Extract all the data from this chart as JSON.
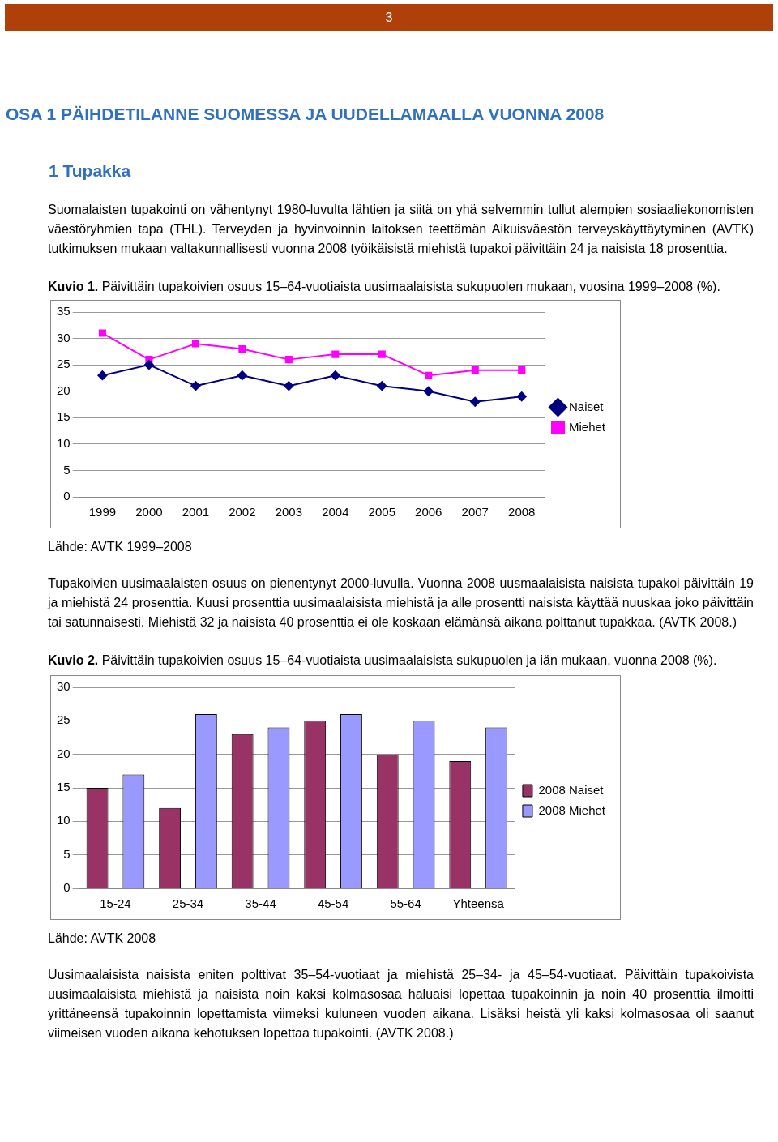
{
  "chart_data": [
    {
      "type": "line",
      "title": "Kuvio 1. Päivittäin tupakoivien osuus 15–64-vuotiaista uusimaalaisista sukupuolen mukaan, vuosina 1999–2008 (%).",
      "categories": [
        "1999",
        "2000",
        "2001",
        "2002",
        "2003",
        "2004",
        "2005",
        "2006",
        "2007",
        "2008"
      ],
      "series": [
        {
          "name": "Naiset",
          "color": "#000080",
          "marker": "diamond",
          "values": [
            23,
            25,
            21,
            23,
            21,
            23,
            21,
            20,
            18,
            19
          ]
        },
        {
          "name": "Miehet",
          "color": "#ff00ff",
          "marker": "square",
          "values": [
            31,
            26,
            29,
            28,
            26,
            27,
            27,
            23,
            24,
            24
          ]
        }
      ],
      "ylim": [
        0,
        35
      ],
      "yticks": [
        0,
        5,
        10,
        15,
        20,
        25,
        30,
        35
      ],
      "grid": "y",
      "legend": "right",
      "annotations": [
        "3",
        "OSA 1 PÄIHDETILANNE SUOMESSA JA UUDELLAMAALLA VUONNA 2008",
        "1 Tupakka",
        "Suomalaisten tupakointi on vähentynyt 1980-luvulta lähtien ja siitä on yhä selvemmin tullut alempien sosiaaliekonomisten väestöryhmien tapa (THL). Terveyden ja hyvinvoinnin laitoksen teettämän Aikuisväestön terveyskäyttäytyminen (AVTK) tutkimuksen mukaan valtakunnallisesti vuonna 2008 työikäisistä miehistä tupakoi päivittäin 24 ja naisista 18 prosenttia.",
        "Lähde: AVTK 1999–2008",
        "Tupakoivien uusimaalaisten osuus on pienentynyt 2000-luvulla. Vuonna 2008 uusmaalaisista naisista tupakoi päivittäin 19 ja miehistä 24 prosenttia. Kuusi prosenttia uusimaalaisista miehistä ja alle prosentti naisista käyttää nuuskaa joko päivittäin tai satunnaisesti. Miehistä 32 ja naisista 40 prosenttia ei ole koskaan elämänsä aikana polttanut tupakkaa. (AVTK 2008.)"
      ]
    },
    {
      "type": "bar",
      "title": "Kuvio 2. Päivittäin tupakoivien osuus 15–64-vuotiaista uusimaalaisista sukupuolen ja iän mukaan, vuonna 2008 (%).",
      "categories": [
        "15-24",
        "25-34",
        "35-44",
        "45-54",
        "55-64",
        "Yhteensä"
      ],
      "series": [
        {
          "name": "2008 Naiset",
          "color": "#993366",
          "values": [
            15,
            12,
            23,
            25,
            20,
            19
          ]
        },
        {
          "name": "2008 Miehet",
          "color": "#9999ff",
          "values": [
            17,
            26,
            24,
            26,
            25,
            24
          ]
        }
      ],
      "ylim": [
        0,
        30
      ],
      "yticks": [
        0,
        5,
        10,
        15,
        20,
        25,
        30
      ],
      "grid": "y",
      "legend": "right",
      "annotations": [
        "Lähde: AVTK 2008",
        "Uusimaalaisista naisista eniten polttivat 35–54-vuotiaat ja miehistä 25–34- ja 45–54-vuotiaat. Päivittäin tupakoivista uusimaalaisista miehistä ja naisista noin kaksi kolmasosaa haluaisi lopettaa tupakoinnin ja noin 40 prosenttia ilmoitti yrittäneensä tupakoinnin lopettamista viimeksi kuluneen vuoden aikana. Lisäksi heistä yli kaksi kolmasosaa oli saanut viimeisen vuoden aikana kehotuksen lopettaa tupakointi. (AVTK 2008.)"
      ]
    }
  ]
}
